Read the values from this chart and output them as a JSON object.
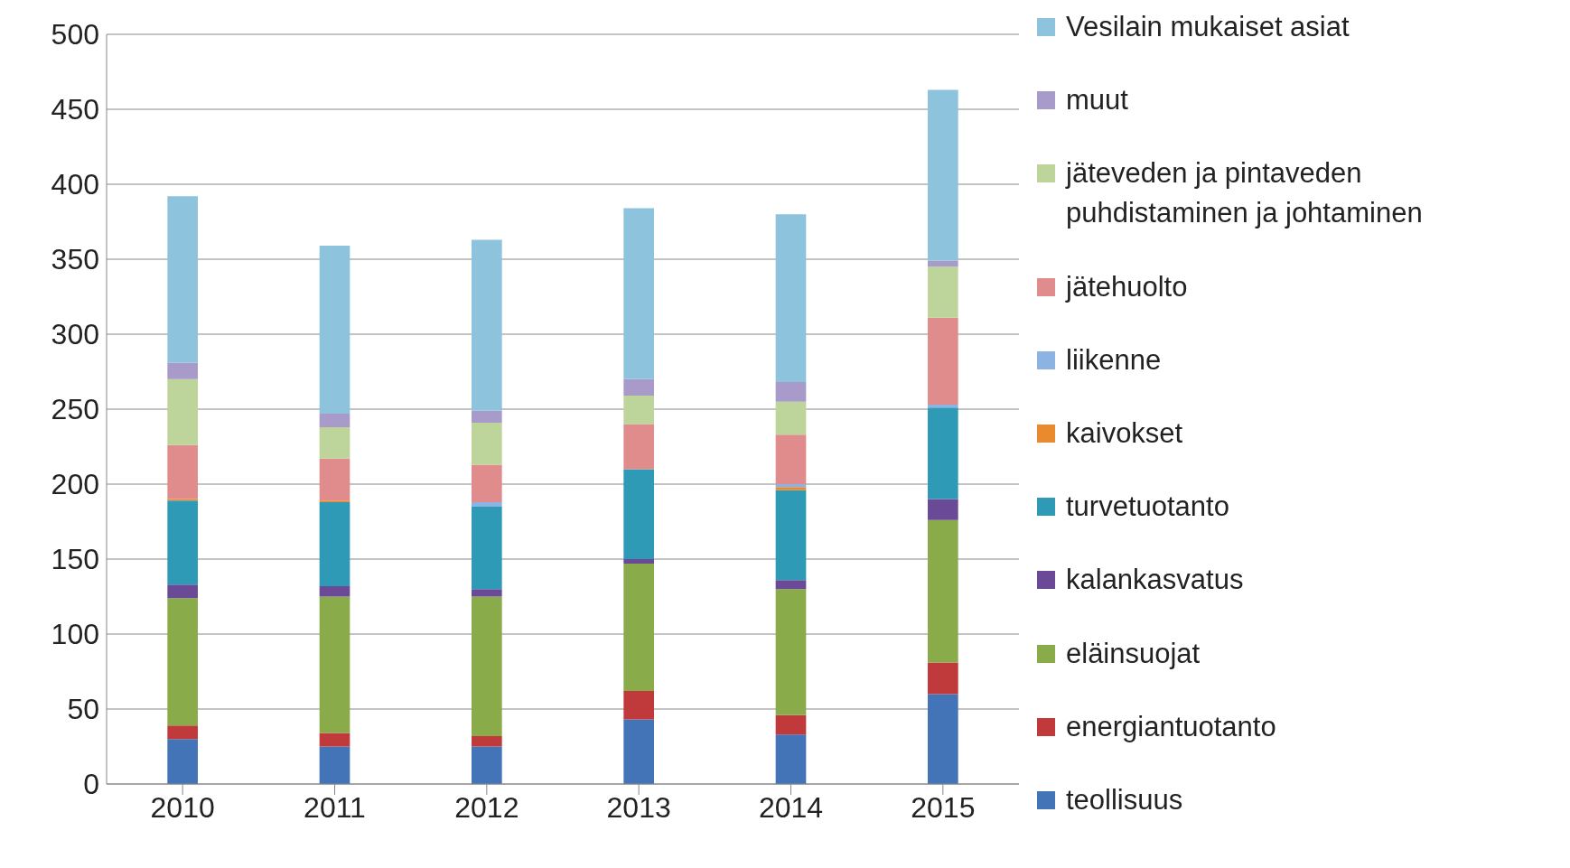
{
  "chart_data": {
    "type": "bar",
    "stacked": true,
    "categories": [
      "2010",
      "2011",
      "2012",
      "2013",
      "2014",
      "2015"
    ],
    "series": [
      {
        "name": "teollisuus",
        "color": "#4374b8",
        "values": [
          30,
          25,
          25,
          43,
          33,
          60
        ]
      },
      {
        "name": "energiantuotanto",
        "color": "#c0393b",
        "values": [
          9,
          9,
          7,
          19,
          13,
          21
        ]
      },
      {
        "name": "eläinsuojat",
        "color": "#8aab4a",
        "values": [
          85,
          91,
          93,
          85,
          84,
          95
        ]
      },
      {
        "name": "kalankasvatus",
        "color": "#6a4a96",
        "values": [
          9,
          7,
          5,
          3,
          6,
          14
        ]
      },
      {
        "name": "turvetuotanto",
        "color": "#2e9ab5",
        "values": [
          56,
          56,
          55,
          60,
          60,
          61
        ]
      },
      {
        "name": "kaivokset",
        "color": "#e88a2e",
        "values": [
          1,
          1,
          0,
          0,
          2,
          0
        ]
      },
      {
        "name": "liikenne",
        "color": "#8db3e2",
        "values": [
          0,
          0,
          3,
          0,
          2,
          2
        ]
      },
      {
        "name": "jätehuolto",
        "color": "#e08c8c",
        "values": [
          36,
          28,
          25,
          30,
          33,
          58
        ]
      },
      {
        "name": "jäteveden ja pintaveden puhdistaminen ja johtaminen",
        "color": "#bdd49a",
        "values": [
          44,
          21,
          28,
          19,
          22,
          34
        ]
      },
      {
        "name": "muut",
        "color": "#a99bc9",
        "values": [
          11,
          9,
          8,
          11,
          13,
          4
        ]
      },
      {
        "name": "Vesilain mukaiset asiat",
        "color": "#8dc3dc",
        "values": [
          111,
          112,
          114,
          114,
          112,
          114
        ]
      }
    ],
    "ylim": [
      0,
      500
    ],
    "yticks": [
      0,
      50,
      100,
      150,
      200,
      250,
      300,
      350,
      400,
      450,
      500
    ],
    "grid": "y",
    "legend": "right"
  }
}
